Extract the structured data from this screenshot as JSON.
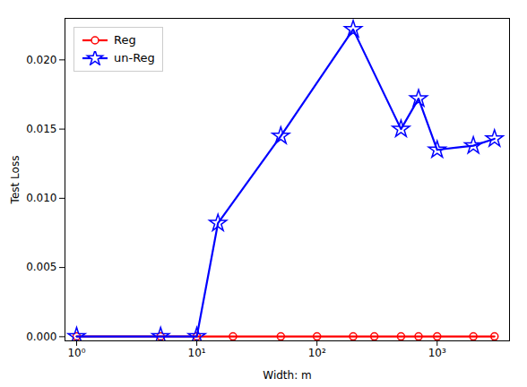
{
  "chart_data": {
    "type": "line",
    "xlabel": "Width: m",
    "ylabel": "Test Loss",
    "log": "x",
    "xlim": [
      0.8,
      4000
    ],
    "ylim": [
      -0.0003,
      0.023
    ],
    "xticks": [
      {
        "value": 1,
        "label": "10⁰"
      },
      {
        "value": 10,
        "label": "10¹"
      },
      {
        "value": 100,
        "label": "10²"
      },
      {
        "value": 1000,
        "label": "10³"
      }
    ],
    "yticks": [
      {
        "value": 0,
        "label": "0.000"
      },
      {
        "value": 0.005,
        "label": "0.005"
      },
      {
        "value": 0.01,
        "label": "0.010"
      },
      {
        "value": 0.015,
        "label": "0.015"
      },
      {
        "value": 0.02,
        "label": "0.020"
      }
    ],
    "grid": false,
    "legend": "upper left",
    "series": [
      {
        "name": "Reg",
        "color": "#ff0000",
        "marker": "circle",
        "x": [
          1,
          5,
          10,
          20,
          50,
          100,
          200,
          300,
          500,
          700,
          1000,
          2000,
          3000
        ],
        "values": [
          2e-05,
          2e-05,
          2e-05,
          2e-05,
          2e-05,
          2e-05,
          2e-05,
          2e-05,
          2e-05,
          2e-05,
          2e-05,
          2e-05,
          2e-05
        ]
      },
      {
        "name": "un-Reg",
        "color": "#0000ff",
        "marker": "star",
        "x": [
          1,
          5,
          10,
          15,
          50,
          200,
          500,
          700,
          1000,
          2000,
          3000
        ],
        "values": [
          2e-05,
          2e-05,
          2e-05,
          0.0082,
          0.0145,
          0.0222,
          0.015,
          0.0172,
          0.0135,
          0.0138,
          0.0143
        ]
      }
    ]
  }
}
